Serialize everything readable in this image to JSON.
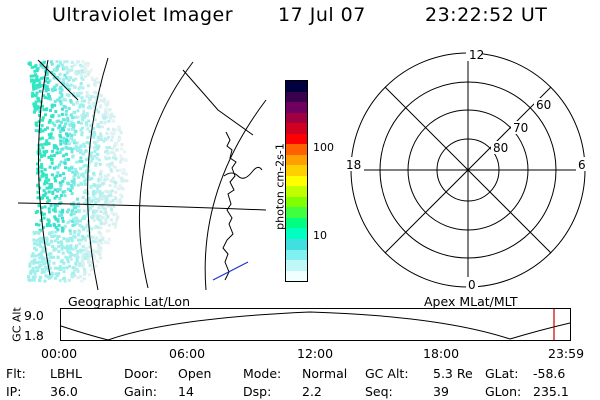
{
  "header": {
    "title": "Ultraviolet Imager",
    "date": "17 Jul 07",
    "time": "23:22:52 UT"
  },
  "colorbar": {
    "unit_label": "photon cm-2s-1",
    "ticks": [
      "100",
      "10"
    ],
    "colors": [
      "#000040",
      "#3a0050",
      "#700060",
      "#a00040",
      "#d00020",
      "#ff0000",
      "#ff6000",
      "#ffa000",
      "#ffd000",
      "#ffff00",
      "#c0ff00",
      "#80ff00",
      "#40ff40",
      "#00ff80",
      "#00ffc0",
      "#40e0e0",
      "#80f0f0",
      "#c0f8f8",
      "#f0ffff"
    ]
  },
  "maps": {
    "left_label": "Geographic Lat/Lon",
    "right_label": "Apex MLat/MLT"
  },
  "polar": {
    "mlt_labels": {
      "top": "12",
      "left": "18",
      "right": "6",
      "bottom": "0"
    },
    "lat_labels": [
      "60",
      "70",
      "80"
    ]
  },
  "orbit": {
    "axis_label": "GC Alt",
    "y_ticks": [
      "9.0",
      "1.8"
    ],
    "x_ticks": [
      "00:00",
      "06:00",
      "12:00",
      "18:00",
      "23:59"
    ],
    "current_marker_color": "#cc0000"
  },
  "info": [
    [
      {
        "k": "Flt:",
        "v": "LBHL"
      },
      {
        "k": "Door:",
        "v": "Open"
      },
      {
        "k": "Mode:",
        "v": "Normal"
      },
      {
        "k": "GC Alt:",
        "v": "5.3 Re"
      },
      {
        "k": "GLat:",
        "v": "-58.6"
      }
    ],
    [
      {
        "k": "IP:",
        "v": "36.0"
      },
      {
        "k": "Gain:",
        "v": "14"
      },
      {
        "k": "Dsp:",
        "v": "2.2"
      },
      {
        "k": "Seq:",
        "v": "39"
      },
      {
        "k": "GLon:",
        "v": "235.1"
      }
    ]
  ]
}
